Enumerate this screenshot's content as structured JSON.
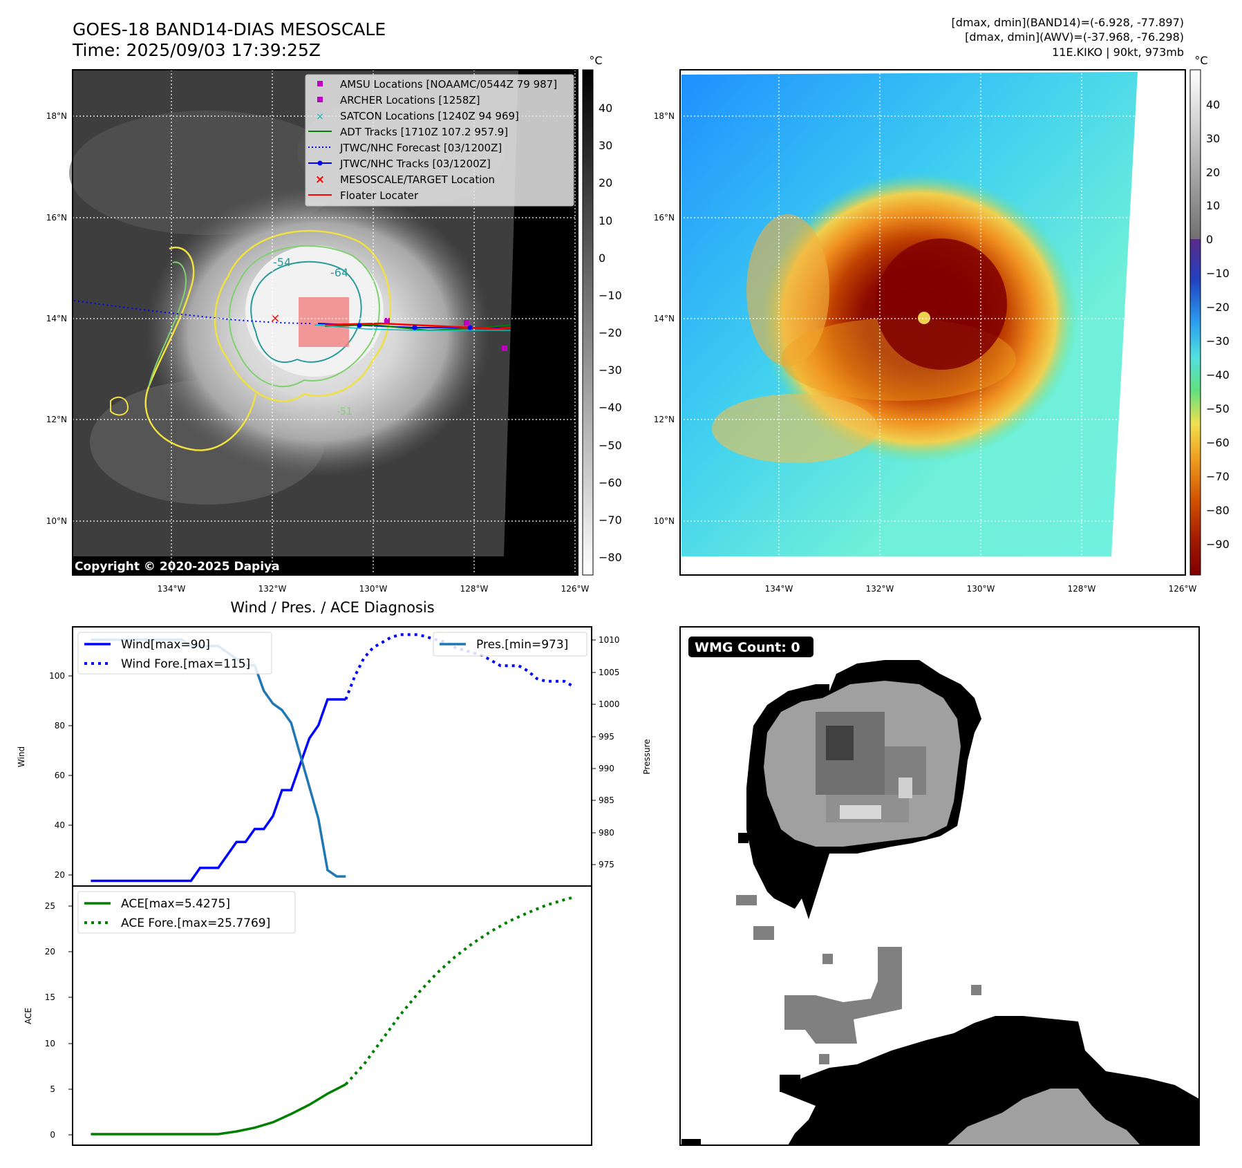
{
  "header": {
    "title": "GOES-18 BAND14-DIAS MESOSCALE",
    "time": "Time: 2025/09/03 17:39:25Z",
    "stats_line1": "[dmax, dmin](BAND14)=(-6.928, -77.897)",
    "stats_line2": "[dmax, dmin](AWV)=(-37.968, -76.298)",
    "storm_info": "11E.KIKO | 90kt, 973mb"
  },
  "maps": {
    "lon_labels": [
      "134°W",
      "132°W",
      "130°W",
      "128°W",
      "126°W"
    ],
    "lat_labels": [
      "18°N",
      "16°N",
      "14°N",
      "12°N",
      "10°N"
    ],
    "copyright": "Copyright © 2020-2025 Dapiya",
    "legend": [
      "AMSU Locations [NOAAMC/0544Z 79 987]",
      "ARCHER Locations [1258Z]",
      "SATCON Locations [1240Z 94 969]",
      "ADT Tracks [1710Z 107.2 957.9]",
      "JTWC/NHC Forecast [03/1200Z]",
      "JTWC/NHC Tracks [03/1200Z]",
      "MESOSCALE/TARGET Location",
      "Floater Locater"
    ],
    "legend_colors": [
      "#bf00bf",
      "#bf00bf",
      "#00bfbf",
      "#008000",
      "#0000ff",
      "#0000ff",
      "#ff0000",
      "#ff0000"
    ],
    "contour_labels": [
      "-54",
      "-64",
      "-51"
    ],
    "colorbar_unit": "°C",
    "gray_colorbar_ticks": [
      "40",
      "30",
      "20",
      "10",
      "0",
      "−10",
      "−20",
      "−30",
      "−40",
      "−50",
      "−60",
      "−70",
      "−80"
    ],
    "color_colorbar_ticks": [
      "40",
      "30",
      "20",
      "10",
      "0",
      "−10",
      "−20",
      "−30",
      "−40",
      "−50",
      "−60",
      "−70",
      "−80",
      "−90"
    ]
  },
  "diagnosis": {
    "title": "Wind / Pres. / ACE Diagnosis",
    "ylabel_wind": "Wind",
    "ylabel_pressure": "Pressure",
    "ylabel_ace": "ACE",
    "wind_ticks": [
      "100",
      "80",
      "60",
      "40",
      "20"
    ],
    "pressure_ticks": [
      "1010",
      "1005",
      "1000",
      "995",
      "990",
      "985",
      "980",
      "975"
    ],
    "ace_ticks": [
      "25",
      "20",
      "15",
      "10",
      "5",
      "0"
    ],
    "legend_wind": "Wind[max=90]",
    "legend_wind_fore": "Wind Fore.[max=115]",
    "legend_pres": "Pres.[min=973]",
    "legend_ace": "ACE[max=5.4275]",
    "legend_ace_fore": "ACE Fore.[max=25.7769]"
  },
  "wmg": {
    "label": "WMG Count: 0"
  },
  "chart_data": [
    {
      "type": "line",
      "title": "Wind / Pres. / ACE Diagnosis",
      "ylabel": "Wind",
      "ylim": [
        18,
        118
      ],
      "series": [
        {
          "name": "Wind[max=90]",
          "x": [
            0,
            1,
            2,
            3,
            4,
            5,
            6,
            7,
            8,
            9,
            10,
            11,
            12,
            13,
            14,
            15,
            16,
            17,
            18,
            19,
            20,
            21,
            22,
            23,
            24,
            25,
            26,
            27,
            28
          ],
          "values": [
            20,
            20,
            20,
            20,
            20,
            20,
            20,
            20,
            20,
            20,
            20,
            20,
            25,
            25,
            25,
            30,
            35,
            35,
            40,
            40,
            45,
            55,
            55,
            65,
            75,
            80,
            90,
            90,
            90
          ]
        },
        {
          "name": "Wind Fore.[max=115]",
          "x": [
            28,
            29,
            30,
            31,
            32,
            33,
            34,
            35,
            36,
            37,
            38,
            39,
            40,
            41,
            42,
            43,
            44,
            45,
            46,
            47,
            48,
            49,
            50,
            51,
            52,
            53
          ],
          "values": [
            90,
            99,
            106,
            110,
            112,
            114,
            115,
            115,
            115,
            114,
            113,
            112,
            110,
            109,
            108,
            107,
            105,
            103,
            103,
            103,
            101,
            98,
            97,
            97,
            97,
            95
          ]
        }
      ]
    },
    {
      "type": "line",
      "ylabel": "Pressure",
      "ylim": [
        971.5,
        1012
      ],
      "series": [
        {
          "name": "Pres.[min=973]",
          "x": [
            0,
            1,
            2,
            3,
            4,
            5,
            6,
            7,
            8,
            9,
            10,
            11,
            12,
            13,
            14,
            15,
            16,
            17,
            18,
            19,
            20,
            21,
            22,
            23,
            24,
            25,
            26,
            27,
            28
          ],
          "values": [
            1010,
            1010,
            1010,
            1010,
            1010,
            1010,
            1010,
            1010,
            1010,
            1010,
            1010,
            1009,
            1009,
            1009,
            1009,
            1008,
            1007,
            1006,
            1006,
            1002,
            1000,
            999,
            997,
            992,
            987,
            982,
            974,
            973,
            973
          ]
        }
      ]
    },
    {
      "type": "line",
      "ylabel": "ACE",
      "ylim": [
        -1.2,
        27
      ],
      "series": [
        {
          "name": "ACE[max=5.4275]",
          "x": [
            0,
            2,
            4,
            6,
            8,
            10,
            12,
            14,
            16,
            18,
            20,
            22,
            24,
            26,
            28
          ],
          "values": [
            0,
            0,
            0,
            0,
            0,
            0,
            0,
            0,
            0.3,
            0.7,
            1.3,
            2.2,
            3.2,
            4.4,
            5.4275
          ]
        },
        {
          "name": "ACE Fore.[max=25.7769]",
          "x": [
            28,
            30,
            32,
            34,
            36,
            38,
            40,
            42,
            44,
            46,
            48,
            50,
            52,
            53
          ],
          "values": [
            5.4275,
            7.6,
            10.3,
            13.0,
            15.4,
            17.5,
            19.3,
            20.8,
            22.1,
            23.2,
            24.1,
            24.9,
            25.5,
            25.7769
          ]
        }
      ]
    }
  ]
}
